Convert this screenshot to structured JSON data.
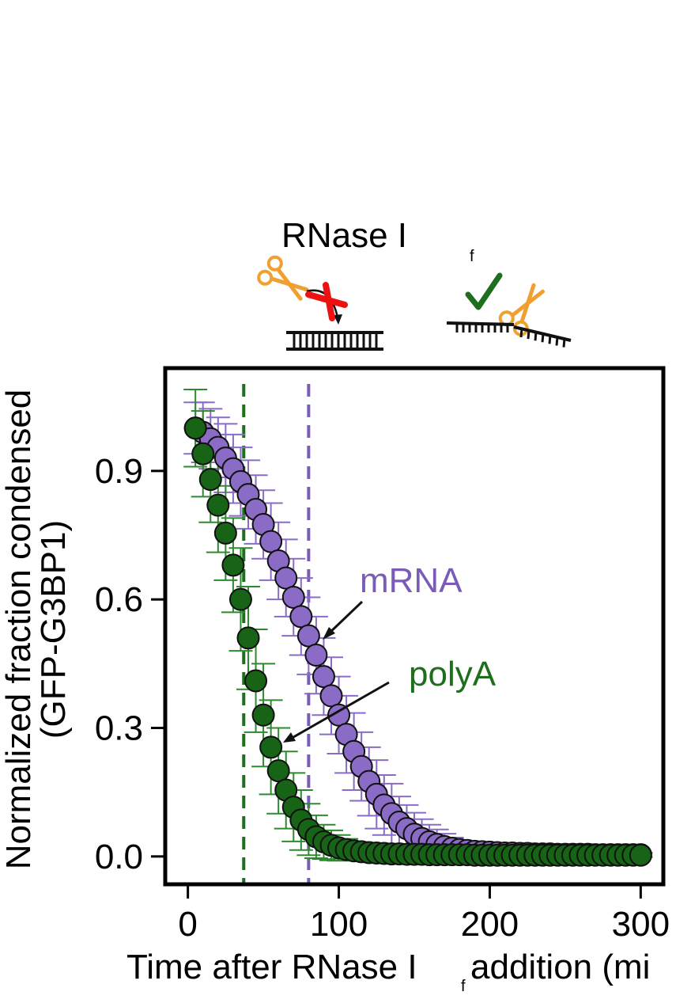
{
  "chart_data": {
    "type": "scatter",
    "title": "RNase I",
    "title_subscript": "f",
    "xlabel_main": "Time after RNase I",
    "xlabel_sub": "f",
    "xlabel_tail": " addition (mi",
    "ylabel_line1": "Normalized fraction condensed",
    "ylabel_line2": "(GFP-G3BP1)",
    "xlim": [
      -15,
      315
    ],
    "ylim": [
      -0.065,
      1.14
    ],
    "xticks": [
      0,
      100,
      200,
      300
    ],
    "xtick_labels": [
      "0",
      "100",
      "200",
      "300"
    ],
    "yticks": [
      0.0,
      0.3,
      0.6,
      0.9
    ],
    "ytick_labels": [
      "0.0",
      "0.3",
      "0.6",
      "0.9"
    ],
    "grid": false,
    "legend": "none (direct labels with arrows)",
    "series": [
      {
        "name": "mRNA",
        "color": "#7a5cb8",
        "marker_fill": "#8a6bc6",
        "errorbar_color": "#8a6bc6",
        "midpoint_vline_x": 80,
        "x": [
          5,
          10,
          15,
          20,
          25,
          30,
          35,
          40,
          45,
          50,
          55,
          60,
          65,
          70,
          75,
          80,
          85,
          90,
          95,
          100,
          105,
          110,
          115,
          120,
          125,
          130,
          135,
          140,
          145,
          150,
          155,
          160,
          165,
          170,
          175,
          180,
          185,
          190,
          195,
          200,
          205,
          210,
          215,
          220,
          225,
          230,
          235,
          240,
          245,
          250,
          255,
          260,
          265,
          270,
          275,
          280,
          285,
          290,
          295,
          300
        ],
        "y": [
          1.0,
          0.99,
          0.975,
          0.955,
          0.93,
          0.905,
          0.875,
          0.845,
          0.81,
          0.775,
          0.735,
          0.69,
          0.65,
          0.605,
          0.56,
          0.515,
          0.47,
          0.42,
          0.375,
          0.33,
          0.285,
          0.245,
          0.21,
          0.175,
          0.145,
          0.12,
          0.1,
          0.08,
          0.065,
          0.052,
          0.042,
          0.034,
          0.028,
          0.023,
          0.019,
          0.016,
          0.014,
          0.012,
          0.011,
          0.01,
          0.009,
          0.008,
          0.008,
          0.007,
          0.007,
          0.006,
          0.006,
          0.006,
          0.005,
          0.005,
          0.005,
          0.005,
          0.005,
          0.004,
          0.004,
          0.004,
          0.004,
          0.004,
          0.004,
          0.004
        ],
        "err": [
          0.06,
          0.07,
          0.07,
          0.07,
          0.08,
          0.08,
          0.08,
          0.08,
          0.08,
          0.08,
          0.09,
          0.09,
          0.09,
          0.09,
          0.09,
          0.09,
          0.09,
          0.09,
          0.09,
          0.09,
          0.09,
          0.09,
          0.08,
          0.08,
          0.08,
          0.07,
          0.07,
          0.06,
          0.055,
          0.05,
          0.045,
          0.04,
          0.035,
          0.03,
          0.025,
          0.022,
          0.02,
          0.018,
          0.016,
          0.014,
          0.012,
          0.011,
          0.01,
          0.009,
          0.008,
          0.008,
          0.007,
          0.007,
          0.006,
          0.006,
          0.006,
          0.005,
          0.005,
          0.005,
          0.005,
          0.005,
          0.005,
          0.005,
          0.005,
          0.005
        ]
      },
      {
        "name": "polyA",
        "color": "#1d6e1d",
        "marker_fill": "#176417",
        "errorbar_color": "#2e8a2e",
        "midpoint_vline_x": 37,
        "x": [
          5,
          10,
          15,
          20,
          25,
          30,
          35,
          40,
          45,
          50,
          55,
          60,
          65,
          70,
          75,
          80,
          85,
          90,
          95,
          100,
          105,
          110,
          115,
          120,
          125,
          130,
          135,
          140,
          145,
          150,
          155,
          160,
          165,
          170,
          175,
          180,
          185,
          190,
          195,
          200,
          205,
          210,
          215,
          220,
          225,
          230,
          235,
          240,
          245,
          250,
          255,
          260,
          265,
          270,
          275,
          280,
          285,
          290,
          295,
          300
        ],
        "y": [
          1.0,
          0.94,
          0.88,
          0.82,
          0.755,
          0.68,
          0.6,
          0.51,
          0.41,
          0.33,
          0.255,
          0.2,
          0.155,
          0.115,
          0.085,
          0.063,
          0.046,
          0.034,
          0.026,
          0.02,
          0.016,
          0.013,
          0.011,
          0.009,
          0.008,
          0.007,
          0.006,
          0.006,
          0.005,
          0.005,
          0.005,
          0.004,
          0.004,
          0.004,
          0.004,
          0.004,
          0.004,
          0.003,
          0.003,
          0.003,
          0.003,
          0.003,
          0.003,
          0.003,
          0.003,
          0.003,
          0.003,
          0.003,
          0.003,
          0.003,
          0.003,
          0.003,
          0.003,
          0.003,
          0.003,
          0.003,
          0.003,
          0.003,
          0.003,
          0.003
        ],
        "err": [
          0.09,
          0.1,
          0.1,
          0.11,
          0.11,
          0.11,
          0.12,
          0.12,
          0.12,
          0.12,
          0.11,
          0.1,
          0.09,
          0.08,
          0.07,
          0.06,
          0.05,
          0.04,
          0.035,
          0.03,
          0.025,
          0.02,
          0.018,
          0.015,
          0.012,
          0.01,
          0.009,
          0.008,
          0.007,
          0.006,
          0.006,
          0.005,
          0.005,
          0.005,
          0.005,
          0.005,
          0.005,
          0.005,
          0.005,
          0.005,
          0.005,
          0.005,
          0.005,
          0.005,
          0.005,
          0.005,
          0.005,
          0.005,
          0.005,
          0.005,
          0.005,
          0.005,
          0.005,
          0.005,
          0.005,
          0.005,
          0.005,
          0.005,
          0.005,
          0.005
        ]
      }
    ],
    "annotations": [
      {
        "text": "mRNA",
        "color": "#7a5cb8",
        "points_to_series": "mRNA",
        "target": [
          92,
          0.5
        ]
      },
      {
        "text": "polyA",
        "color": "#1d6e1d",
        "points_to_series": "polyA",
        "target": [
          60,
          0.27
        ]
      }
    ]
  },
  "colors": {
    "scissors": "#f0a030",
    "cross": "#ee1111",
    "check": "#1d6e1d",
    "rna": "#111111"
  },
  "icons": {
    "left": [
      "scissors-icon",
      "red-x-icon",
      "curved-arrow-icon",
      "double-stranded-rna-icon"
    ],
    "right": [
      "check-icon",
      "scissors-icon",
      "single-stranded-rna-icon"
    ]
  }
}
